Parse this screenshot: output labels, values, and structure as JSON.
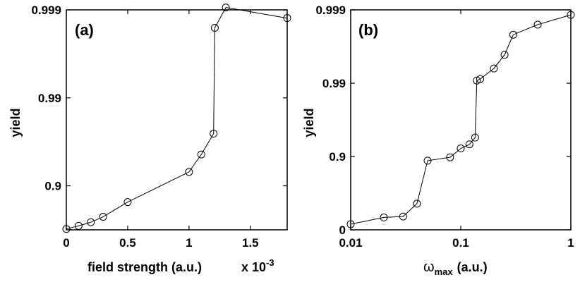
{
  "chart_data": [
    {
      "type": "line",
      "panel_label": "(a)",
      "xlabel": "field strength (a.u.)",
      "x_multiplier": "x 10",
      "x_multiplier_exp": "-3",
      "ylabel": "yield",
      "xscale": "linear",
      "yscale": "log(1-yield)",
      "xlim": [
        0,
        1.8
      ],
      "x_ticks": [
        {
          "value": 0,
          "label": "0"
        },
        {
          "value": 0.5,
          "label": "0.5"
        },
        {
          "value": 1,
          "label": "1"
        },
        {
          "value": 1.5,
          "label": "1.5"
        }
      ],
      "y_ticks": [
        {
          "value": 0.9,
          "label": "0.9"
        },
        {
          "value": 0.99,
          "label": "0.99"
        },
        {
          "value": 0.999,
          "label": "0.999"
        }
      ],
      "marker": "circle",
      "series": [
        {
          "x": [
            0,
            0.1,
            0.2,
            0.3,
            0.5,
            1.0,
            1.1,
            1.2,
            1.21,
            1.3,
            1.8
          ],
          "y": [
            0.691,
            0.715,
            0.741,
            0.775,
            0.847,
            0.9305,
            0.956,
            0.9745,
            0.9984,
            0.99906,
            0.99876
          ]
        }
      ]
    },
    {
      "type": "line",
      "panel_label": "(b)",
      "xlabel_symbol": "ω",
      "xlabel_sub": "max",
      "xlabel_unit": "(a.u.)",
      "ylabel": "yield",
      "xscale": "log",
      "yscale": "log(1-yield)",
      "xlim": [
        0.01,
        1
      ],
      "x_ticks": [
        {
          "value": 0.01,
          "label": "0.01"
        },
        {
          "value": 0.1,
          "label": "0.1"
        },
        {
          "value": 1,
          "label": "1"
        }
      ],
      "y_ticks": [
        {
          "value": 0,
          "label": "0"
        },
        {
          "value": 0.9,
          "label": "0.9"
        },
        {
          "value": 0.99,
          "label": "0.99"
        },
        {
          "value": 0.999,
          "label": "0.999"
        }
      ],
      "marker": "circle",
      "series": [
        {
          "x": [
            0.01,
            0.02,
            0.03,
            0.04,
            0.05,
            0.08,
            0.1,
            0.12,
            0.135,
            0.14,
            0.15,
            0.2,
            0.25,
            0.3,
            0.5,
            1.0
          ],
          "y": [
            0.163,
            0.323,
            0.342,
            0.56,
            0.886,
            0.8975,
            0.9224,
            0.9318,
            0.9448,
            0.9908,
            0.9912,
            0.9937,
            0.9959,
            0.99782,
            0.99841,
            0.99883
          ]
        }
      ]
    }
  ]
}
